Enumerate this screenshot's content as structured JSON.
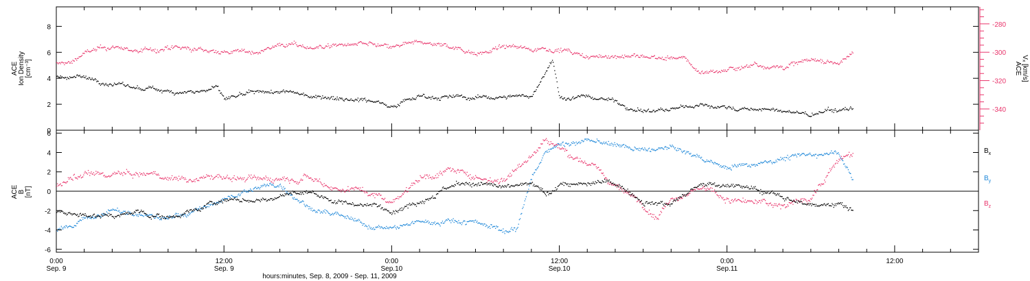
{
  "chart_data": [
    {
      "type": "scatter",
      "panel": "top",
      "ylabel_lines": [
        "ACE",
        "Ion Density",
        "[cm⁻³]"
      ],
      "y2label_lines": [
        "ACE",
        "Vₓ [km/s]"
      ],
      "ylim": [
        0,
        9.5
      ],
      "y_ticks": [
        0,
        2,
        4,
        6,
        8
      ],
      "y_tick_labels": [
        "0",
        "2",
        "4",
        "6",
        "8"
      ],
      "y2lim": [
        -355,
        -268
      ],
      "y2_ticks": [
        -280,
        -300,
        -320,
        -340
      ],
      "y2_tick_labels": [
        "-280",
        "-300",
        "-320",
        "-340"
      ],
      "colors": {
        "density": "#000000",
        "vx": "#e8336a"
      },
      "series": [
        {
          "key": "density",
          "x_hours": [
            0,
            2,
            4,
            6,
            8,
            10,
            11.5,
            12,
            14,
            16,
            18,
            20,
            22,
            24,
            26,
            28,
            30,
            32,
            34,
            35.5,
            36,
            38,
            40,
            41,
            42,
            44,
            46,
            48,
            50,
            52,
            54,
            56,
            57
          ],
          "values": [
            4.2,
            4.1,
            3.6,
            3.2,
            3.1,
            3.0,
            3.3,
            2.4,
            2.8,
            3.0,
            2.7,
            2.6,
            2.4,
            2.0,
            2.7,
            2.6,
            2.5,
            2.6,
            2.7,
            5.5,
            2.5,
            2.6,
            2.3,
            1.8,
            1.5,
            1.6,
            2.0,
            1.8,
            1.6,
            1.5,
            1.2,
            1.6,
            1.7
          ]
        },
        {
          "key": "vx",
          "x_hours": [
            0,
            1,
            2,
            4,
            6,
            8,
            10,
            12,
            14,
            16,
            18,
            20,
            22,
            24,
            26,
            28,
            30,
            32,
            34,
            36,
            38,
            40,
            42,
            44,
            45,
            46,
            48,
            50,
            52,
            54,
            56,
            57
          ],
          "values": [
            -308,
            -307,
            -300,
            -296,
            -299,
            -297,
            -298,
            -299,
            -300,
            -294,
            -296,
            -295,
            -294,
            -297,
            -293,
            -295,
            -300,
            -296,
            -297,
            -297,
            -304,
            -302,
            -303,
            -304,
            -305,
            -314,
            -312,
            -308,
            -310,
            -305,
            -307,
            -300
          ]
        }
      ]
    },
    {
      "type": "scatter",
      "panel": "bottom",
      "ylabel_lines": [
        "ACE",
        "B",
        "[nT]"
      ],
      "ylim": [
        -6.3,
        6.3
      ],
      "y_ticks": [
        -6,
        -4,
        -2,
        0,
        2,
        4,
        6
      ],
      "y_tick_labels": [
        "-6",
        "-4",
        "-2",
        "0",
        "2",
        "4",
        "6"
      ],
      "legend_position": "right",
      "series": [
        {
          "name": "Bx",
          "color": "#000000",
          "x_hours": [
            0,
            2,
            4,
            6,
            8,
            10,
            12,
            14,
            16,
            18,
            20,
            22,
            24,
            26,
            28,
            30,
            32,
            34,
            35,
            36,
            38,
            40,
            42,
            44,
            46,
            48,
            50,
            52,
            54,
            56,
            57
          ],
          "values": [
            -2.0,
            -2.5,
            -2.5,
            -2.2,
            -2.7,
            -1.8,
            -0.8,
            -1.0,
            -0.5,
            0.0,
            -1.0,
            -1.3,
            -1.8,
            -0.8,
            0.5,
            0.8,
            0.3,
            0.8,
            -0.5,
            0.9,
            0.7,
            0.9,
            -0.8,
            -1.2,
            0.5,
            0.9,
            0.2,
            -0.5,
            -1.5,
            -1.0,
            -2.0
          ]
        },
        {
          "name": "By",
          "color": "#1a85d8",
          "x_hours": [
            0,
            1,
            2,
            4,
            6,
            8,
            10,
            12,
            14,
            16,
            18,
            20,
            22,
            24,
            26,
            28,
            30,
            32,
            33,
            34,
            35,
            36,
            38,
            40,
            42,
            44,
            46,
            48,
            50,
            52,
            54,
            56,
            57
          ],
          "values": [
            -4.0,
            -3.8,
            -2.8,
            -2.0,
            -2.5,
            -2.8,
            -2.0,
            -0.8,
            0.3,
            0.8,
            -1.5,
            -2.5,
            -3.5,
            -3.8,
            -3.2,
            -3.0,
            -3.0,
            -4.0,
            -3.8,
            1.8,
            4.0,
            5.0,
            5.2,
            4.8,
            4.2,
            4.5,
            3.5,
            2.5,
            3.0,
            3.5,
            3.8,
            4.2,
            1.0
          ]
        },
        {
          "name": "Bz",
          "color": "#e8336a",
          "x_hours": [
            0,
            1,
            2,
            4,
            6,
            8,
            10,
            12,
            14,
            16,
            18,
            20,
            22,
            24,
            26,
            28,
            30,
            32,
            33,
            34,
            35,
            36,
            38,
            40,
            42,
            43,
            44,
            46,
            48,
            50,
            52,
            54,
            56,
            57
          ],
          "values": [
            0.8,
            1.2,
            1.5,
            1.8,
            1.7,
            1.5,
            1.3,
            1.6,
            1.2,
            1.5,
            1.7,
            0.4,
            0.2,
            -1.0,
            1.5,
            2.2,
            1.5,
            1.3,
            2.5,
            4.0,
            5.5,
            4.5,
            3.0,
            0.5,
            -1.2,
            -2.5,
            -0.5,
            0.5,
            -0.8,
            -1.2,
            -1.5,
            -0.5,
            3.5,
            4.0
          ]
        }
      ]
    }
  ],
  "x_axis": {
    "range_hours": [
      0,
      66
    ],
    "tick_hours": [
      0,
      12,
      24,
      36,
      48,
      60
    ],
    "tick_time_labels": [
      "0:00",
      "12:00",
      "0:00",
      "12:00",
      "0:00",
      "12:00"
    ],
    "tick_date_labels": [
      "Sep. 9",
      "Sep. 9",
      "Sep.10",
      "Sep.10",
      "Sep.11",
      ""
    ],
    "xlabel": "hours:minutes, Sep.  8, 2009 - Sep. 11, 2009"
  },
  "legend": {
    "bx": {
      "base": "B",
      "sub": "x"
    },
    "by": {
      "base": "B",
      "sub": "y"
    },
    "bz": {
      "base": "B",
      "sub": "z"
    }
  }
}
